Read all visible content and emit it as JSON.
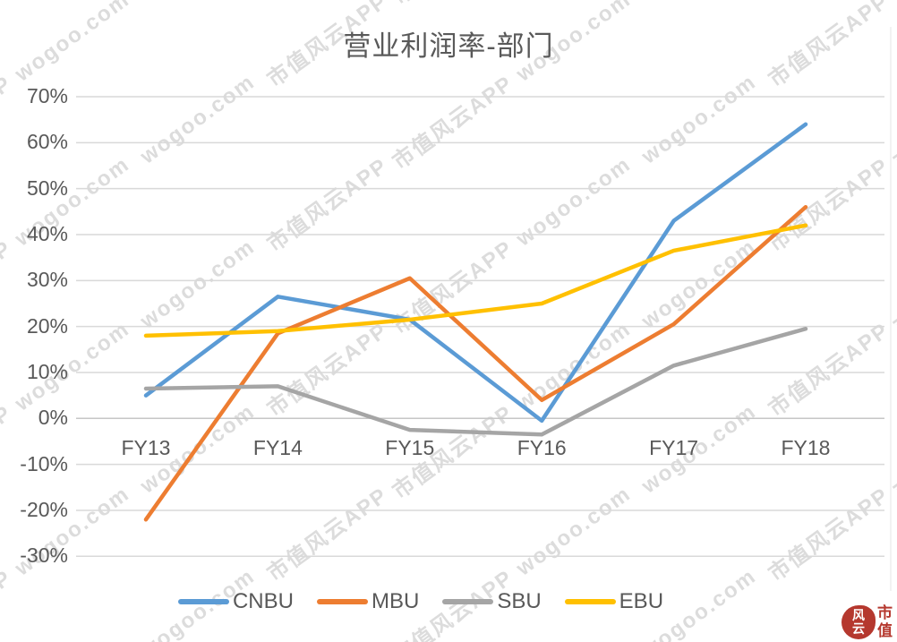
{
  "title": "营业利润率-部门",
  "watermark": {
    "texts": [
      "市值风云APP",
      "wogoo.com"
    ],
    "color": "#DCDCDC"
  },
  "logo": {
    "circle_text_top": "风",
    "circle_text_bottom": "云",
    "side_top": "市",
    "side_bottom": "值",
    "color": "#B5382E"
  },
  "chart_data": {
    "type": "line",
    "title": "营业利润率-部门",
    "categories": [
      "FY13",
      "FY14",
      "FY15",
      "FY16",
      "FY17",
      "FY18"
    ],
    "series": [
      {
        "name": "CNBU",
        "color": "#5B9BD5",
        "values": [
          5,
          26.5,
          21.5,
          -0.5,
          43,
          64
        ]
      },
      {
        "name": "MBU",
        "color": "#ED7D31",
        "values": [
          -22,
          18.5,
          30.5,
          4,
          20.5,
          46
        ]
      },
      {
        "name": "SBU",
        "color": "#A5A5A5",
        "values": [
          6.5,
          7,
          -2.5,
          -3.5,
          11.5,
          19.5
        ]
      },
      {
        "name": "EBU",
        "color": "#FFC000",
        "values": [
          18,
          19,
          21.5,
          25,
          36.5,
          42
        ]
      }
    ],
    "ylim": [
      -30,
      70
    ],
    "ytick_step": 10,
    "ytick_labels": [
      "70%",
      "60%",
      "50%",
      "40%",
      "30%",
      "20%",
      "10%",
      "0%",
      "-10%",
      "-20%",
      "-30%"
    ],
    "xlabel": "",
    "ylabel": "",
    "grid": true,
    "legend_position": "bottom",
    "gridline_color": "#D9D9D9",
    "axis_line_color": "#C6C6C6",
    "text_color": "#595959"
  }
}
